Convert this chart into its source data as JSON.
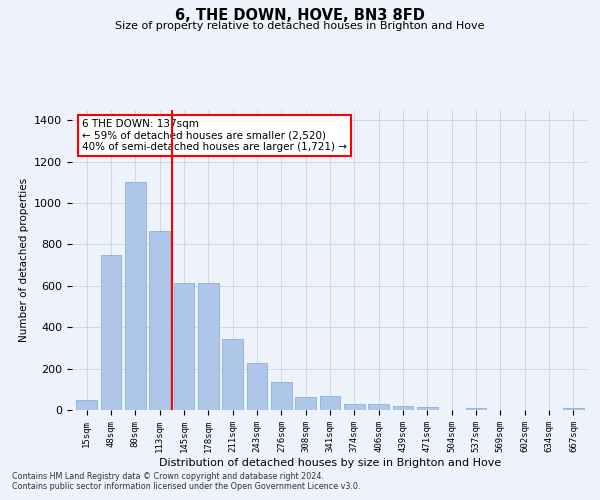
{
  "title": "6, THE DOWN, HOVE, BN3 8FD",
  "subtitle": "Size of property relative to detached houses in Brighton and Hove",
  "xlabel": "Distribution of detached houses by size in Brighton and Hove",
  "ylabel": "Number of detached properties",
  "footer_line1": "Contains HM Land Registry data © Crown copyright and database right 2024.",
  "footer_line2": "Contains public sector information licensed under the Open Government Licence v3.0.",
  "bar_labels": [
    "15sqm",
    "48sqm",
    "80sqm",
    "113sqm",
    "145sqm",
    "178sqm",
    "211sqm",
    "243sqm",
    "276sqm",
    "308sqm",
    "341sqm",
    "374sqm",
    "406sqm",
    "439sqm",
    "471sqm",
    "504sqm",
    "537sqm",
    "569sqm",
    "602sqm",
    "634sqm",
    "667sqm"
  ],
  "bar_values": [
    50,
    750,
    1100,
    865,
    615,
    615,
    345,
    225,
    135,
    65,
    70,
    30,
    30,
    20,
    15,
    0,
    12,
    0,
    0,
    0,
    12
  ],
  "bar_color": "#aec6e8",
  "bar_edge_color": "#7aadd4",
  "annotation_box_text": "6 THE DOWN: 137sqm\n← 59% of detached houses are smaller (2,520)\n40% of semi-detached houses are larger (1,721) →",
  "vline_x_index": 3.5,
  "vline_color": "red",
  "annotation_box_color": "white",
  "annotation_box_edge_color": "red",
  "grid_color": "#d0d8e8",
  "background_color": "#eef2fa",
  "ylim": [
    0,
    1450
  ],
  "yticks": [
    0,
    200,
    400,
    600,
    800,
    1000,
    1200,
    1400
  ]
}
